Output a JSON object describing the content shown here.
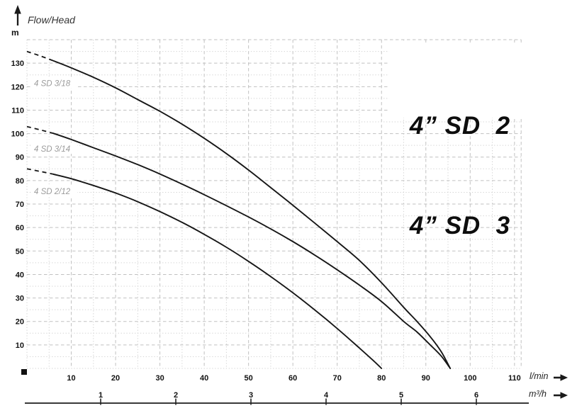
{
  "labels": {
    "flow_head": "Flow/Head",
    "y_unit": "m",
    "x_unit_primary": "l/min",
    "x_unit_secondary": "m³/h"
  },
  "title": {
    "line1": "4” SD  2",
    "line2": "4” SD  3"
  },
  "chart_data": {
    "type": "line",
    "title": "4” SD 2 / 4” SD 3 pump performance curves",
    "xlabel": "l/min",
    "xlabel_secondary": "m³/h",
    "ylabel": "m (Flow/Head)",
    "xlim": [
      0,
      111.5
    ],
    "ylim": [
      0,
      140
    ],
    "grid": {
      "x_major": 10,
      "x_minor": 5,
      "y_major": 10,
      "y_minor": 5
    },
    "y_ticks": [
      10,
      20,
      30,
      40,
      50,
      60,
      70,
      80,
      90,
      100,
      110,
      120,
      130
    ],
    "x_ticks_lmin": [
      10,
      20,
      30,
      40,
      50,
      60,
      70,
      80,
      90,
      100,
      110
    ],
    "x_ticks_m3h": [
      1,
      2,
      3,
      4,
      5,
      6
    ],
    "colors": {
      "curve": "#161616",
      "grid_major": "#c1c1c1",
      "grid_minor": "#d2d2d2",
      "tick_text": "#111111",
      "series_label": "#9c9c9c",
      "axis_line": "#3a3a3a"
    },
    "series": [
      {
        "name": "4 SD 3/18",
        "label_x": 1.6,
        "label_y": 121.5,
        "dashed_points": [
          [
            0,
            135
          ],
          [
            3,
            133.1
          ],
          [
            6,
            131
          ]
        ],
        "points": [
          [
            6,
            131
          ],
          [
            10,
            128
          ],
          [
            15,
            124
          ],
          [
            20,
            119.5
          ],
          [
            25,
            114.5
          ],
          [
            30,
            109.5
          ],
          [
            35,
            104
          ],
          [
            40,
            98
          ],
          [
            45,
            91.5
          ],
          [
            50,
            84.5
          ],
          [
            55,
            77
          ],
          [
            60,
            69.5
          ],
          [
            65,
            61.8
          ],
          [
            70,
            54
          ],
          [
            75,
            46
          ],
          [
            80,
            36.5
          ],
          [
            85,
            26
          ],
          [
            88,
            20
          ],
          [
            91,
            13.5
          ],
          [
            93.5,
            7
          ],
          [
            95.5,
            0
          ]
        ]
      },
      {
        "name": "4 SD 3/14",
        "label_x": 1.6,
        "label_y": 93.5,
        "dashed_points": [
          [
            0,
            103
          ],
          [
            3,
            101.6
          ],
          [
            6,
            100.1
          ]
        ],
        "points": [
          [
            6,
            100.1
          ],
          [
            10,
            97.5
          ],
          [
            15,
            94
          ],
          [
            20,
            90.5
          ],
          [
            25,
            86.8
          ],
          [
            30,
            82.8
          ],
          [
            35,
            78.5
          ],
          [
            40,
            74
          ],
          [
            45,
            69.3
          ],
          [
            50,
            64.5
          ],
          [
            55,
            59.4
          ],
          [
            60,
            54
          ],
          [
            65,
            48.2
          ],
          [
            70,
            42
          ],
          [
            75,
            35.5
          ],
          [
            80,
            28.5
          ],
          [
            85,
            20
          ],
          [
            88,
            15.5
          ],
          [
            91,
            10
          ],
          [
            93.5,
            5.2
          ],
          [
            95.5,
            0
          ]
        ]
      },
      {
        "name": "4 SD 2/12",
        "label_x": 1.6,
        "label_y": 75.5,
        "dashed_points": [
          [
            0,
            85
          ],
          [
            3,
            83.9
          ],
          [
            6,
            82.7
          ]
        ],
        "points": [
          [
            6,
            82.7
          ],
          [
            10,
            80.8
          ],
          [
            15,
            77.9
          ],
          [
            20,
            74.7
          ],
          [
            25,
            71
          ],
          [
            30,
            66.8
          ],
          [
            35,
            62.2
          ],
          [
            40,
            57.1
          ],
          [
            45,
            51.6
          ],
          [
            50,
            45.6
          ],
          [
            55,
            39.1
          ],
          [
            60,
            32.2
          ],
          [
            65,
            24.8
          ],
          [
            70,
            17
          ],
          [
            75,
            8.7
          ],
          [
            78,
            3.6
          ],
          [
            80,
            0
          ]
        ]
      }
    ]
  }
}
